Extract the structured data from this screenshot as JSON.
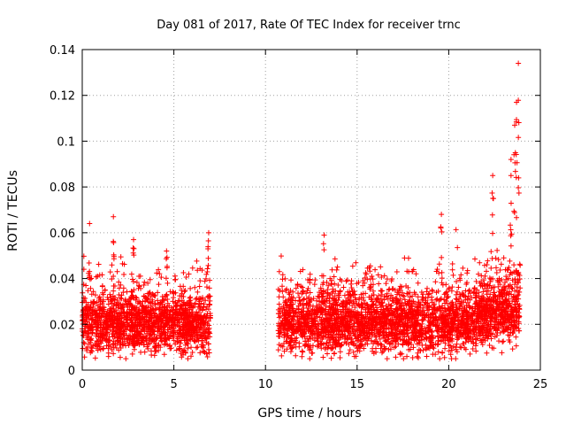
{
  "chart_data": {
    "type": "scatter",
    "title": "Day 081 of 2017, Rate Of TEC Index for receiver trnc",
    "xlabel": "GPS time / hours",
    "ylabel": "ROTI / TECUs",
    "xlim": [
      0,
      25
    ],
    "ylim": [
      0,
      0.14
    ],
    "x_ticks": [
      0,
      5,
      10,
      15,
      20,
      25
    ],
    "y_ticks": [
      0,
      0.02,
      0.04,
      0.06,
      0.08,
      0.1,
      0.12,
      0.14
    ],
    "x_tick_labels": [
      "0",
      "5",
      "10",
      "15",
      "20",
      "25"
    ],
    "y_tick_labels": [
      "0",
      "0.02",
      "0.04",
      "0.06",
      "0.08",
      "0.1",
      "0.12",
      "0.14"
    ],
    "grid": true,
    "marker": "plus",
    "color": "#ff0000",
    "series": [
      {
        "name": "ROTI",
        "segments": [
          {
            "x_start": 0.0,
            "x_end": 7.0,
            "base_roti": 0.02
          },
          {
            "x_start": 10.7,
            "x_end": 23.9,
            "base_roti": 0.02
          }
        ],
        "notable_points": [
          {
            "x": 0.4,
            "y": 0.064
          },
          {
            "x": 1.7,
            "y": 0.067
          },
          {
            "x": 2.8,
            "y": 0.057
          },
          {
            "x": 4.6,
            "y": 0.052
          },
          {
            "x": 6.9,
            "y": 0.06
          },
          {
            "x": 13.2,
            "y": 0.059
          },
          {
            "x": 19.6,
            "y": 0.068
          },
          {
            "x": 22.4,
            "y": 0.085
          },
          {
            "x": 23.4,
            "y": 0.092
          },
          {
            "x": 23.6,
            "y": 0.107
          },
          {
            "x": 23.7,
            "y": 0.117
          },
          {
            "x": 23.8,
            "y": 0.134
          }
        ]
      }
    ]
  }
}
